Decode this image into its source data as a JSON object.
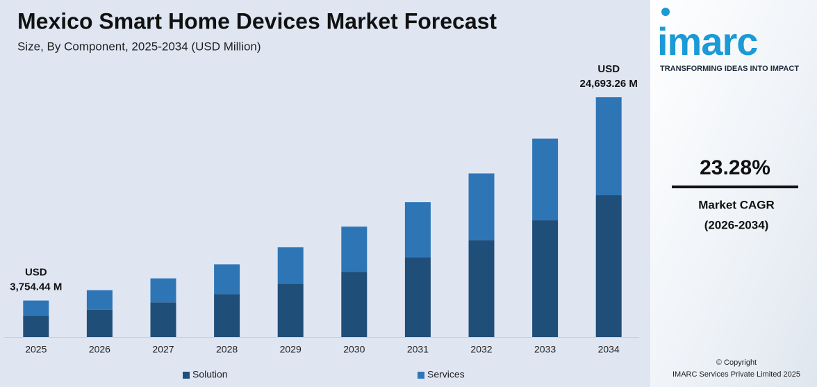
{
  "chart_data": {
    "type": "stacked_bar",
    "title": "Mexico Smart Home Devices Market Forecast",
    "subtitle": "Size, By Component, 2025-2034 (USD Million)",
    "categories": [
      "2025",
      "2026",
      "2027",
      "2028",
      "2029",
      "2030",
      "2031",
      "2032",
      "2033",
      "2034"
    ],
    "series": [
      {
        "name": "Solution",
        "color": "#1f4e79",
        "values": [
          2200,
          2810,
          3560,
          4400,
          5470,
          6690,
          8200,
          9960,
          12020,
          14600
        ]
      },
      {
        "name": "Services",
        "color": "#2e75b6",
        "values": [
          1554.44,
          2010,
          2478,
          3085,
          3766,
          4678,
          5681,
          6891,
          8410,
          10093.26
        ]
      }
    ],
    "annotations": [
      {
        "category": "2025",
        "lines": [
          "USD",
          "3,754.44 M"
        ]
      },
      {
        "category": "2034",
        "lines": [
          "USD",
          "24,693.26 M"
        ]
      }
    ]
  },
  "sidebar": {
    "logo": "imarc",
    "tagline": "TRANSFORMING IDEAS INTO IMPACT",
    "cagr": "23.28%",
    "cagr_label": "Market CAGR",
    "cagr_period": "(2026-2034)",
    "copyright": "© Copyright",
    "company": "IMARC Services Private Limited 2025"
  }
}
